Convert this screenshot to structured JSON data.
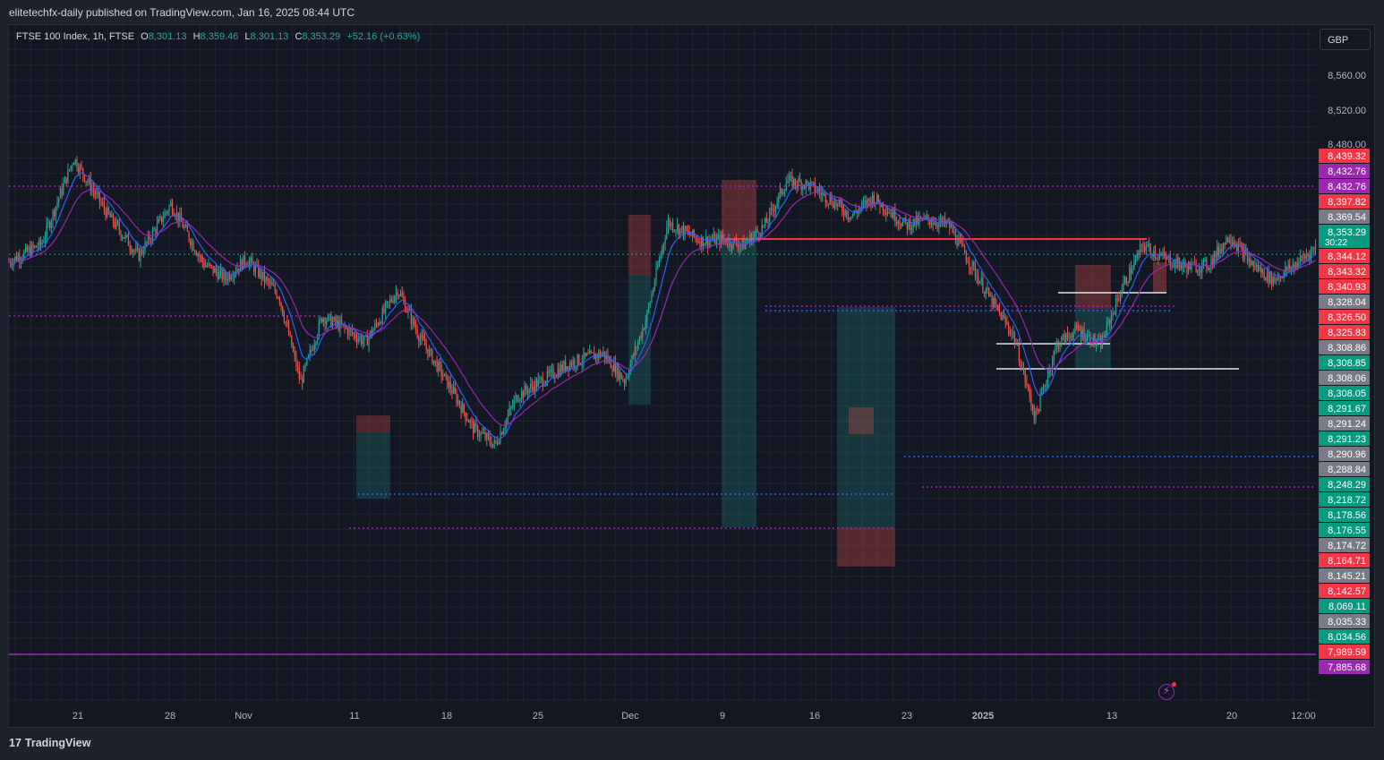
{
  "header": {
    "publisher_line": "elitetechfx-daily published on TradingView.com, Jan 16, 2025 08:44 UTC"
  },
  "legend": {
    "symbol": "FTSE 100 Index, 1h, FTSE",
    "o_label": "O",
    "o_value": "8,301.13",
    "h_label": "H",
    "h_value": "8,359.46",
    "l_label": "L",
    "l_value": "8,301.13",
    "c_label": "C",
    "c_value": "8,353.29",
    "change": "+52.16 (+0.63%)"
  },
  "currency": "GBP",
  "footer": {
    "brand": "TradingView",
    "brand_icon": "tradingview-logo-icon"
  },
  "colors": {
    "background": "#131722",
    "grid": "#1f2330",
    "up": "#26a69a",
    "down": "#ef5350",
    "ema_fast": "#2962ff",
    "ema_slow": "#9c27b0",
    "red_line": "#f23645",
    "blue_dotted": "#2962ff",
    "purple_dotted": "#9c27b0",
    "white_line": "#e0e3eb"
  },
  "chart_data": {
    "type": "candlestick",
    "interval": "1h",
    "ylim": [
      7860,
      8600
    ],
    "y_ticks": [
      "8,560.00",
      "8,520.00",
      "8,480.00"
    ],
    "x_ticks": [
      "21",
      "28",
      "Nov",
      "11",
      "18",
      "25",
      "Dec",
      "9",
      "16",
      "23",
      "2025",
      "13",
      "20",
      "12:00"
    ],
    "price_trace": [
      [
        0,
        8342
      ],
      [
        3,
        8361
      ],
      [
        6,
        8455
      ],
      [
        9,
        8396
      ],
      [
        12,
        8348
      ],
      [
        15,
        8405
      ],
      [
        18,
        8340
      ],
      [
        20,
        8324
      ],
      [
        22,
        8345
      ],
      [
        25,
        8305
      ],
      [
        27,
        8210
      ],
      [
        29,
        8282
      ],
      [
        31,
        8270
      ],
      [
        33,
        8254
      ],
      [
        36,
        8312
      ],
      [
        38,
        8260
      ],
      [
        41,
        8202
      ],
      [
        43,
        8160
      ],
      [
        45,
        8142
      ],
      [
        47,
        8195
      ],
      [
        49,
        8210
      ],
      [
        52,
        8232
      ],
      [
        55,
        8242
      ],
      [
        57,
        8212
      ],
      [
        59,
        8280
      ],
      [
        61,
        8385
      ],
      [
        64,
        8365
      ],
      [
        66,
        8366
      ],
      [
        68,
        8360
      ],
      [
        70,
        8382
      ],
      [
        72,
        8430
      ],
      [
        74,
        8426
      ],
      [
        76,
        8410
      ],
      [
        78,
        8392
      ],
      [
        80,
        8412
      ],
      [
        83,
        8382
      ],
      [
        85,
        8388
      ],
      [
        87,
        8382
      ],
      [
        89,
        8340
      ],
      [
        91,
        8298
      ],
      [
        93,
        8262
      ],
      [
        95,
        8172
      ],
      [
        97,
        8252
      ],
      [
        99,
        8268
      ],
      [
        101,
        8250
      ],
      [
        103,
        8312
      ],
      [
        105,
        8360
      ],
      [
        107,
        8345
      ],
      [
        109,
        8336
      ],
      [
        111,
        8338
      ],
      [
        113,
        8371
      ],
      [
        115,
        8340
      ],
      [
        117,
        8322
      ],
      [
        119,
        8338
      ],
      [
        121,
        8358
      ]
    ],
    "moving_averages": [
      {
        "name": "",
        "color": "#2962ff"
      },
      {
        "name": "",
        "color": "#9c27b0"
      }
    ],
    "horizontal_levels": [
      {
        "style": "purple-dotted",
        "price": 8432.76
      },
      {
        "style": "purple-dotted",
        "price": 8340.93
      },
      {
        "style": "purple-dotted",
        "price": 8248.29
      },
      {
        "style": "purple-dotted",
        "price": 8174.72
      },
      {
        "style": "purple-dotted",
        "price": 8288.84
      },
      {
        "style": "blue-dotted",
        "price": 8218.72
      },
      {
        "style": "blue-dotted",
        "price": 8291.23
      },
      {
        "style": "blue-dotted",
        "price": 8344.12
      },
      {
        "style": "red-solid",
        "price": 8397.82
      },
      {
        "style": "white-solid",
        "price": 8343.32
      },
      {
        "style": "white-solid",
        "price": 8326.5
      },
      {
        "style": "white-solid",
        "price": 8308.86
      },
      {
        "style": "purple-solid",
        "price": 8035.33
      }
    ],
    "price_labels": [
      {
        "text": "8,439.32",
        "color": "#f23645"
      },
      {
        "text": "8,432.76",
        "color": "#9c27b0"
      },
      {
        "text": "8,432.76",
        "color": "#9c27b0"
      },
      {
        "text": "8,397.82",
        "color": "#f23645"
      },
      {
        "text": "8,369.54",
        "color": "#787b86"
      },
      {
        "text": "8,353.29",
        "color": "#089981",
        "sub": "30:22"
      },
      {
        "text": "8,344.12",
        "color": "#f23645"
      },
      {
        "text": "8,343.32",
        "color": "#f23645"
      },
      {
        "text": "8,340.93",
        "color": "#f23645"
      },
      {
        "text": "8,328.04",
        "color": "#787b86"
      },
      {
        "text": "8,326.50",
        "color": "#f23645"
      },
      {
        "text": "8,325.83",
        "color": "#f23645"
      },
      {
        "text": "8,308.86",
        "color": "#787b86"
      },
      {
        "text": "8,308.85",
        "color": "#089981"
      },
      {
        "text": "8,308.06",
        "color": "#787b86"
      },
      {
        "text": "8,308.05",
        "color": "#089981"
      },
      {
        "text": "8,291.67",
        "color": "#089981"
      },
      {
        "text": "8,291.24",
        "color": "#787b86"
      },
      {
        "text": "8,291.23",
        "color": "#089981"
      },
      {
        "text": "8,290.96",
        "color": "#787b86"
      },
      {
        "text": "8,288.84",
        "color": "#787b86"
      },
      {
        "text": "8,248.29",
        "color": "#089981"
      },
      {
        "text": "8,218.72",
        "color": "#089981"
      },
      {
        "text": "8,178.56",
        "color": "#089981"
      },
      {
        "text": "8,176.55",
        "color": "#089981"
      },
      {
        "text": "8,174.72",
        "color": "#787b86"
      },
      {
        "text": "8,164.71",
        "color": "#f23645"
      },
      {
        "text": "8,145.21",
        "color": "#787b86"
      },
      {
        "text": "8,142.57",
        "color": "#f23645"
      },
      {
        "text": "8,069.11",
        "color": "#089981"
      },
      {
        "text": "8,035.33",
        "color": "#787b86"
      },
      {
        "text": "8,034.56",
        "color": "#089981"
      },
      {
        "text": "7,989.59",
        "color": "#f23645"
      },
      {
        "text": "7,885.68",
        "color": "#9c27b0"
      }
    ]
  }
}
